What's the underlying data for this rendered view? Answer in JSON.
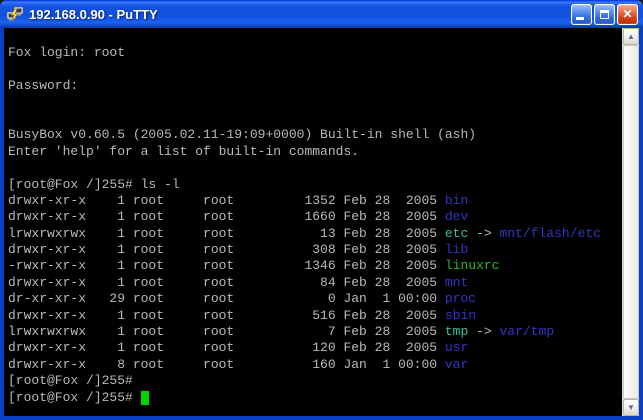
{
  "window": {
    "title": "192.168.0.90 - PuTTY",
    "close_glyph": "✕"
  },
  "scrollbar": {
    "up_glyph": "▲",
    "down_glyph": "▼"
  },
  "terminal": {
    "colors": {
      "bg": "#000000",
      "fg": "#b9b9b9",
      "dir": "#3434c8",
      "symlink": "#38c0a0",
      "exec": "#2ab82a",
      "cursor": "#00d800"
    },
    "lines": [
      {
        "segments": []
      },
      {
        "segments": [
          {
            "text": "Fox login: root",
            "color": "fg"
          }
        ]
      },
      {
        "segments": []
      },
      {
        "segments": [
          {
            "text": "Password:",
            "color": "fg"
          }
        ]
      },
      {
        "segments": []
      },
      {
        "segments": []
      },
      {
        "segments": [
          {
            "text": "BusyBox v0.60.5 (2005.02.11-19:09+0000) Built-in shell (ash)",
            "color": "fg"
          }
        ]
      },
      {
        "segments": [
          {
            "text": "Enter 'help' for a list of built-in commands.",
            "color": "fg"
          }
        ]
      },
      {
        "segments": []
      },
      {
        "segments": [
          {
            "text": "[root@Fox /]255# ls -l",
            "color": "fg"
          }
        ]
      },
      {
        "segments": [
          {
            "text": "drwxr-xr-x    1 root     root         1352 Feb 28  2005 ",
            "color": "fg"
          },
          {
            "text": "bin",
            "color": "dir"
          }
        ]
      },
      {
        "segments": [
          {
            "text": "drwxr-xr-x    1 root     root         1660 Feb 28  2005 ",
            "color": "fg"
          },
          {
            "text": "dev",
            "color": "dir"
          }
        ]
      },
      {
        "segments": [
          {
            "text": "lrwxrwxrwx    1 root     root           13 Feb 28  2005 ",
            "color": "fg"
          },
          {
            "text": "etc",
            "color": "symlink"
          },
          {
            "text": " -> ",
            "color": "fg"
          },
          {
            "text": "mnt/flash/etc",
            "color": "dir"
          }
        ]
      },
      {
        "segments": [
          {
            "text": "drwxr-xr-x    1 root     root          308 Feb 28  2005 ",
            "color": "fg"
          },
          {
            "text": "lib",
            "color": "dir"
          }
        ]
      },
      {
        "segments": [
          {
            "text": "-rwxr-xr-x    1 root     root         1346 Feb 28  2005 ",
            "color": "fg"
          },
          {
            "text": "linuxrc",
            "color": "exec"
          }
        ]
      },
      {
        "segments": [
          {
            "text": "drwxr-xr-x    1 root     root           84 Feb 28  2005 ",
            "color": "fg"
          },
          {
            "text": "mnt",
            "color": "dir"
          }
        ]
      },
      {
        "segments": [
          {
            "text": "dr-xr-xr-x   29 root     root            0 Jan  1 00:00 ",
            "color": "fg"
          },
          {
            "text": "proc",
            "color": "dir"
          }
        ]
      },
      {
        "segments": [
          {
            "text": "drwxr-xr-x    1 root     root          516 Feb 28  2005 ",
            "color": "fg"
          },
          {
            "text": "sbin",
            "color": "dir"
          }
        ]
      },
      {
        "segments": [
          {
            "text": "lrwxrwxrwx    1 root     root            7 Feb 28  2005 ",
            "color": "fg"
          },
          {
            "text": "tmp",
            "color": "symlink"
          },
          {
            "text": " -> ",
            "color": "fg"
          },
          {
            "text": "var/tmp",
            "color": "dir"
          }
        ]
      },
      {
        "segments": [
          {
            "text": "drwxr-xr-x    1 root     root          120 Feb 28  2005 ",
            "color": "fg"
          },
          {
            "text": "usr",
            "color": "dir"
          }
        ]
      },
      {
        "segments": [
          {
            "text": "drwxr-xr-x    8 root     root          160 Jan  1 00:00 ",
            "color": "fg"
          },
          {
            "text": "var",
            "color": "dir"
          }
        ]
      },
      {
        "segments": [
          {
            "text": "[root@Fox /]255#",
            "color": "fg"
          }
        ]
      },
      {
        "segments": [
          {
            "text": "[root@Fox /]255# ",
            "color": "fg"
          }
        ],
        "cursor": true
      }
    ]
  }
}
